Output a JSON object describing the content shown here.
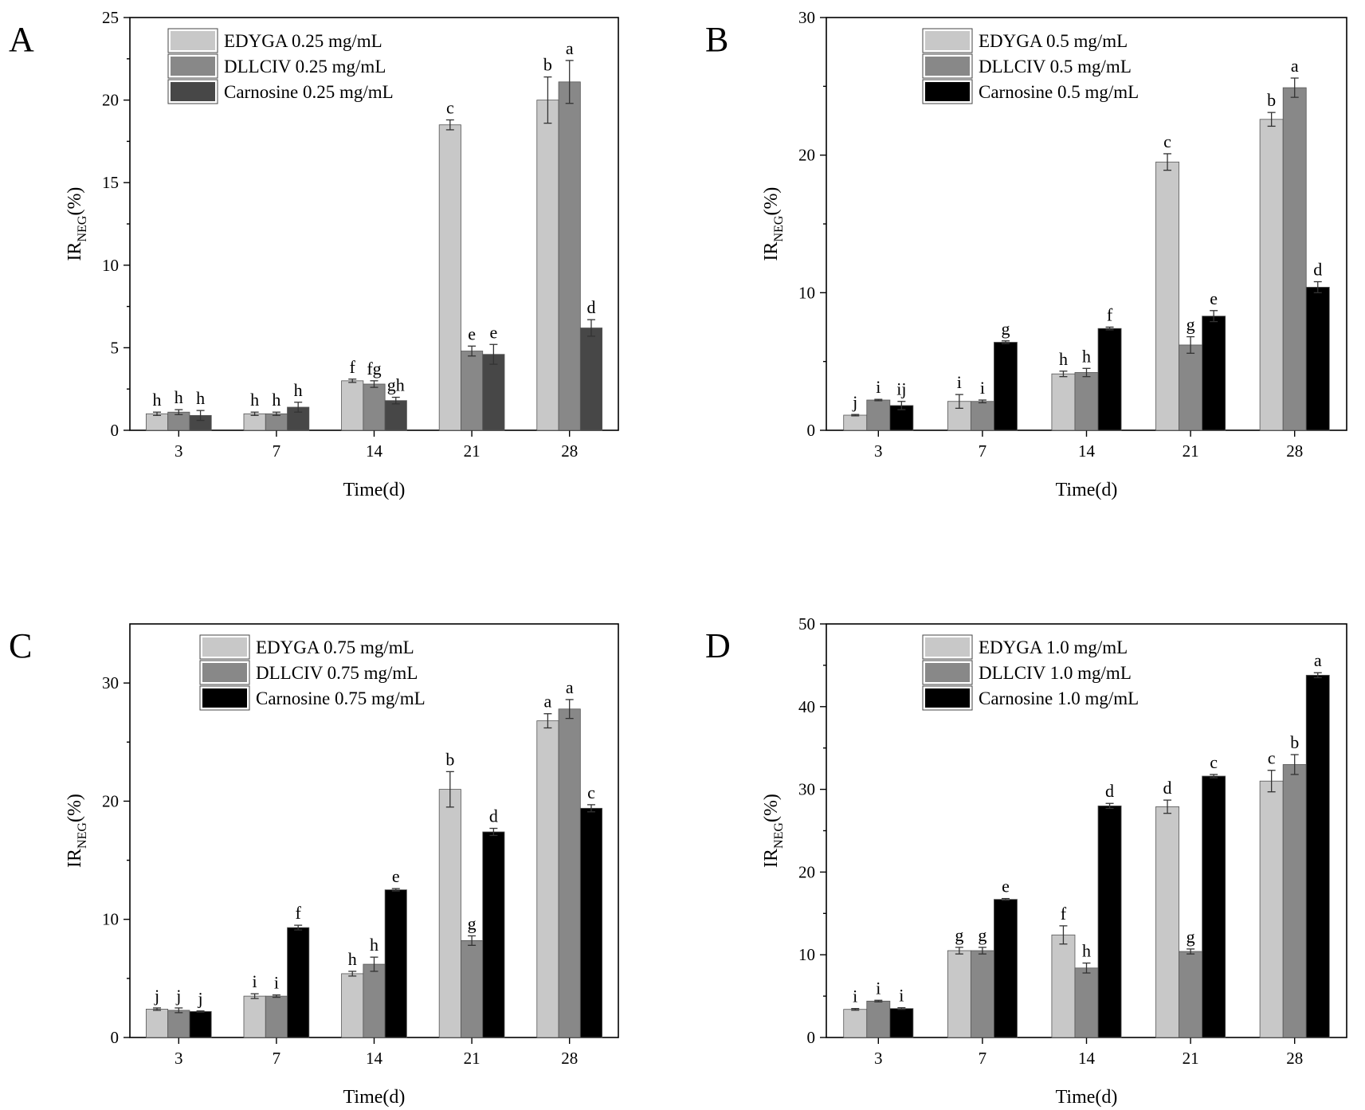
{
  "chart_data": [
    {
      "type": "bar",
      "panel_label": "A",
      "xlabel": "Time(d)",
      "ylabel_main": "IR",
      "ylabel_sub": "NEG",
      "ylabel_tail": "(%)",
      "ylim": [
        0,
        25
      ],
      "yticks": [
        "0",
        "5",
        "10",
        "15",
        "20",
        "25"
      ],
      "categories": [
        "3",
        "7",
        "14",
        "21",
        "28"
      ],
      "colors": [
        "#c8c8c8",
        "#888888",
        "#474747"
      ],
      "legend_position": "top-left",
      "series": [
        {
          "name": "EDYGA 0.25 mg/mL",
          "values": [
            1.0,
            1.0,
            3.0,
            18.5,
            20.0
          ],
          "errors": [
            0.1,
            0.1,
            0.1,
            0.3,
            1.4
          ],
          "letters": [
            "h",
            "h",
            "f",
            "c",
            "b"
          ]
        },
        {
          "name": "DLLCIV 0.25 mg/mL",
          "values": [
            1.1,
            1.0,
            2.8,
            4.8,
            21.1
          ],
          "errors": [
            0.15,
            0.1,
            0.2,
            0.3,
            1.3
          ],
          "letters": [
            "h",
            "h",
            "fg",
            "e",
            "a"
          ]
        },
        {
          "name": "Carnosine 0.25 mg/mL",
          "values": [
            0.9,
            1.4,
            1.8,
            4.6,
            6.2
          ],
          "errors": [
            0.3,
            0.3,
            0.2,
            0.6,
            0.5
          ],
          "letters": [
            "h",
            "h",
            "gh",
            "e",
            "d"
          ]
        }
      ]
    },
    {
      "type": "bar",
      "panel_label": "B",
      "xlabel": "Time(d)",
      "ylabel_main": "IR",
      "ylabel_sub": "NEG",
      "ylabel_tail": "(%)",
      "ylim": [
        0,
        30
      ],
      "yticks": [
        "0",
        "10",
        "20",
        "30"
      ],
      "categories": [
        "3",
        "7",
        "14",
        "21",
        "28"
      ],
      "colors": [
        "#c8c8c8",
        "#888888",
        "#000000"
      ],
      "legend_position": "top-left",
      "series": [
        {
          "name": "EDYGA 0.5 mg/mL",
          "values": [
            1.1,
            2.1,
            4.1,
            19.5,
            22.6
          ],
          "errors": [
            0.05,
            0.5,
            0.2,
            0.6,
            0.5
          ],
          "letters": [
            "j",
            "i",
            "h",
            "c",
            "b"
          ]
        },
        {
          "name": "DLLCIV 0.5 mg/mL",
          "values": [
            2.2,
            2.1,
            4.2,
            6.2,
            24.9
          ],
          "errors": [
            0.05,
            0.1,
            0.3,
            0.6,
            0.7
          ],
          "letters": [
            "i",
            "i",
            "h",
            "g",
            "a"
          ]
        },
        {
          "name": "Carnosine 0.5 mg/mL",
          "values": [
            1.8,
            6.4,
            7.4,
            8.3,
            10.4
          ],
          "errors": [
            0.3,
            0.1,
            0.1,
            0.4,
            0.4
          ],
          "letters": [
            "ij",
            "g",
            "f",
            "e",
            "d"
          ]
        }
      ]
    },
    {
      "type": "bar",
      "panel_label": "C",
      "xlabel": "Time(d)",
      "ylabel_main": "IR",
      "ylabel_sub": "NEG",
      "ylabel_tail": "(%)",
      "ylim": [
        0,
        35
      ],
      "yticks": [
        "0",
        "10",
        "20",
        "30"
      ],
      "categories": [
        "3",
        "7",
        "14",
        "21",
        "28"
      ],
      "colors": [
        "#c8c8c8",
        "#888888",
        "#000000"
      ],
      "legend_position": "top-left",
      "series": [
        {
          "name": "EDYGA 0.75 mg/mL",
          "values": [
            2.4,
            3.5,
            5.4,
            21.0,
            26.8
          ],
          "errors": [
            0.1,
            0.2,
            0.2,
            1.5,
            0.6
          ],
          "letters": [
            "j",
            "i",
            "h",
            "b",
            "a"
          ]
        },
        {
          "name": "DLLCIV 0.75 mg/mL",
          "values": [
            2.3,
            3.5,
            6.2,
            8.2,
            27.8
          ],
          "errors": [
            0.2,
            0.1,
            0.6,
            0.4,
            0.8
          ],
          "letters": [
            "j",
            "i",
            "h",
            "g",
            "a"
          ]
        },
        {
          "name": "Carnosine 0.75 mg/mL",
          "values": [
            2.2,
            9.3,
            12.5,
            17.4,
            19.4
          ],
          "errors": [
            0.05,
            0.2,
            0.1,
            0.3,
            0.3
          ],
          "letters": [
            "j",
            "f",
            "e",
            "d",
            "c"
          ]
        }
      ]
    },
    {
      "type": "bar",
      "panel_label": "D",
      "xlabel": "Time(d)",
      "ylabel_main": "IR",
      "ylabel_sub": "NEG",
      "ylabel_tail": "(%)",
      "ylim": [
        0,
        50
      ],
      "yticks": [
        "0",
        "10",
        "20",
        "30",
        "40",
        "50"
      ],
      "categories": [
        "3",
        "7",
        "14",
        "21",
        "28"
      ],
      "colors": [
        "#c8c8c8",
        "#888888",
        "#000000"
      ],
      "legend_position": "top-left",
      "series": [
        {
          "name": "EDYGA 1.0 mg/mL",
          "values": [
            3.4,
            10.5,
            12.4,
            27.9,
            31.0
          ],
          "errors": [
            0.1,
            0.4,
            1.1,
            0.8,
            1.3
          ],
          "letters": [
            "i",
            "g",
            "f",
            "d",
            "c"
          ]
        },
        {
          "name": "DLLCIV 1.0 mg/mL",
          "values": [
            4.4,
            10.5,
            8.4,
            10.4,
            33.0
          ],
          "errors": [
            0.1,
            0.4,
            0.6,
            0.3,
            1.2
          ],
          "letters": [
            "i",
            "g",
            "h",
            "g",
            "b"
          ]
        },
        {
          "name": "Carnosine 1.0 mg/mL",
          "values": [
            3.5,
            16.7,
            28.0,
            31.6,
            43.8
          ],
          "errors": [
            0.1,
            0.1,
            0.3,
            0.2,
            0.3
          ],
          "letters": [
            "i",
            "e",
            "d",
            "c",
            "a"
          ]
        }
      ]
    }
  ]
}
